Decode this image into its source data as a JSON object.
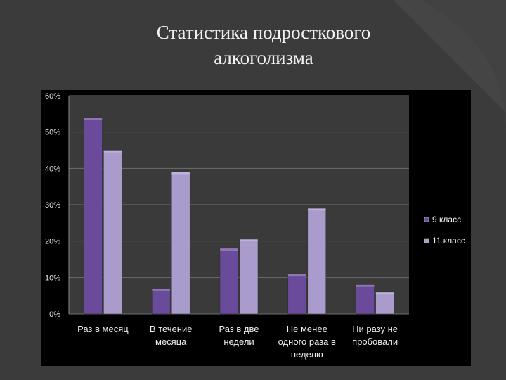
{
  "slide": {
    "title_line1": "Статистика подросткового",
    "title_line2": "алкоголизма"
  },
  "chart_data": {
    "type": "bar",
    "categories": [
      [
        "Раз в месяц"
      ],
      [
        "В течение",
        "месяца"
      ],
      [
        "Раз в две",
        "недели"
      ],
      [
        "Не менее",
        "одного раза в",
        "неделю"
      ],
      [
        "Ни разу не",
        "пробовали"
      ]
    ],
    "series": [
      {
        "name": "9 класс",
        "values": [
          54,
          7,
          18,
          11,
          8
        ],
        "color": "#6a4a9a"
      },
      {
        "name": "11 класс",
        "values": [
          45,
          39,
          20.5,
          29,
          6
        ],
        "color": "#a99bcc"
      }
    ],
    "yticks": [
      "0%",
      "10%",
      "20%",
      "30%",
      "40%",
      "50%",
      "60%"
    ],
    "ylim": [
      0,
      60
    ],
    "grid": true,
    "legend": "right"
  }
}
